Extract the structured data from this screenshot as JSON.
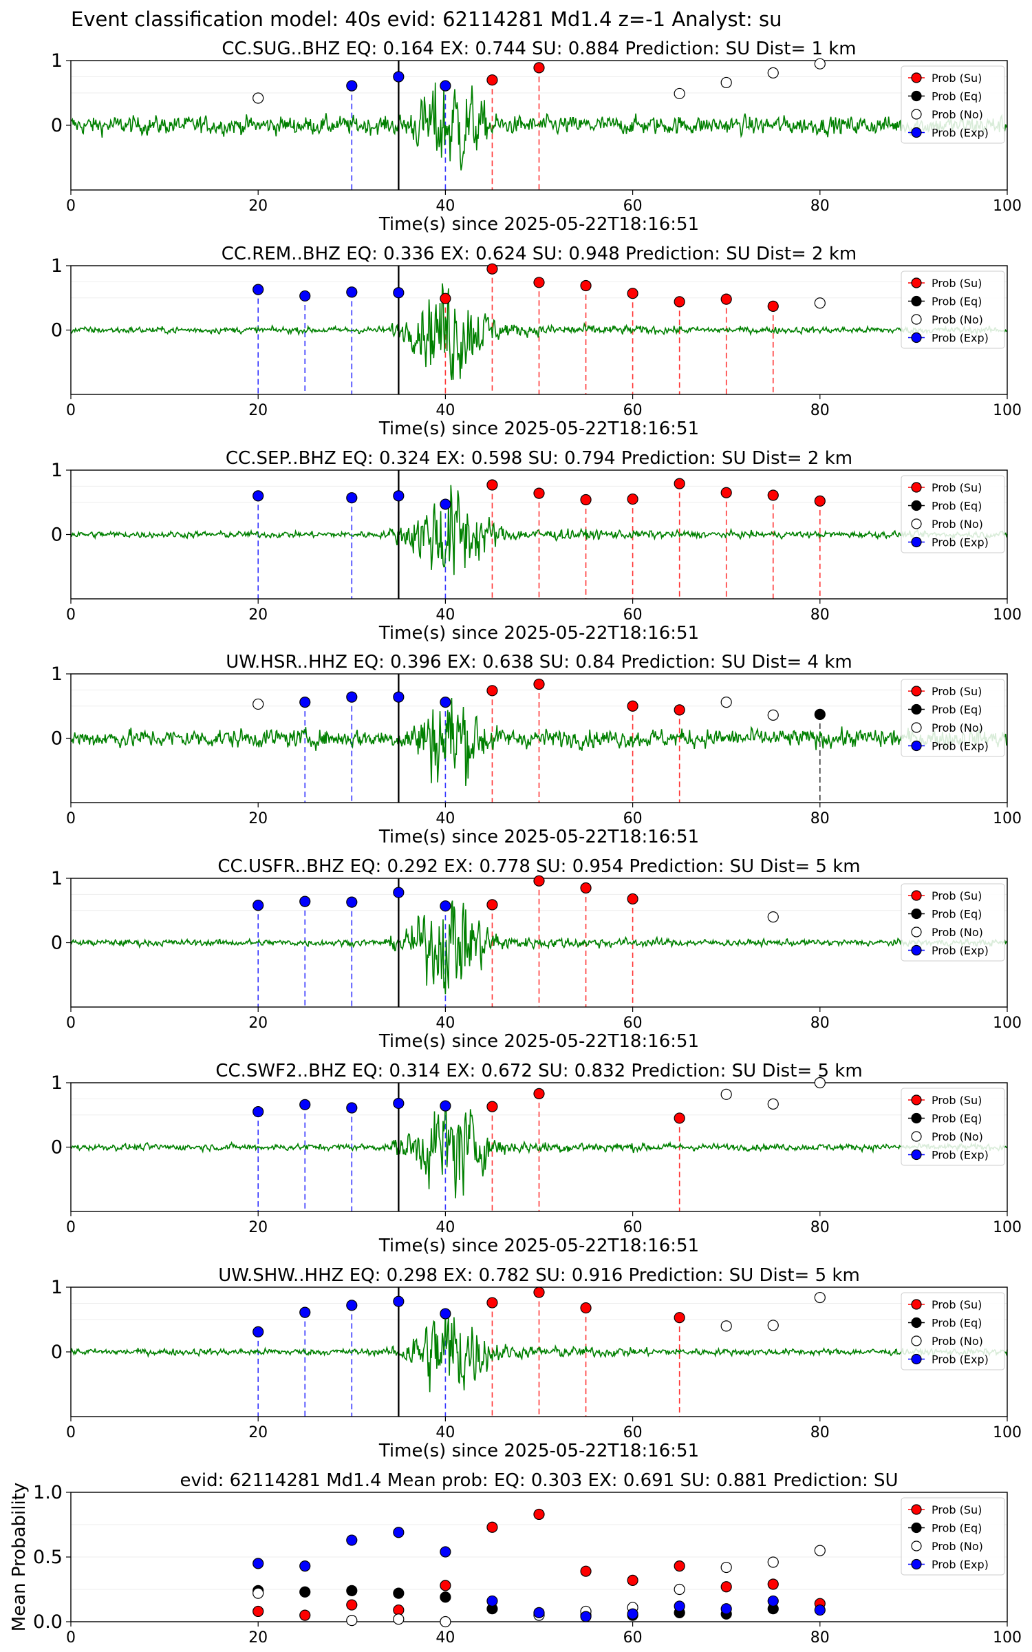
{
  "figure_title": "Event classification model: 40s evid: 62114281 Md1.4 z=-1 Analyst: su",
  "legend_labels": [
    "Prob (Su)",
    "Prob (Eq)",
    "Prob (No)",
    "Prob (Exp)"
  ],
  "colors": {
    "su": "#ff0000",
    "eq": "#000000",
    "no": "#ffffff",
    "exp": "#0000ff",
    "waveform": "#008000",
    "p_line": "#000000"
  },
  "chart_data": [
    {
      "type": "scatter",
      "title": "CC.SUG..BHZ   EQ: 0.164  EX: 0.744  SU: 0.884   Prediction: SU    Dist= 1 km",
      "xlabel": "Time(s) since 2025-05-22T18:16:51",
      "xlim": [
        0,
        100
      ],
      "xticks": [
        0,
        20,
        40,
        60,
        80,
        100
      ],
      "ylim": [
        -1,
        1
      ],
      "yticks": [
        0,
        1
      ],
      "p_arrival": 35,
      "waveform_amplitude": "medium",
      "points": [
        {
          "x": 20,
          "y": 0.42,
          "cls": "no"
        },
        {
          "x": 30,
          "y": 0.61,
          "cls": "exp"
        },
        {
          "x": 35,
          "y": 0.75,
          "cls": "exp"
        },
        {
          "x": 40,
          "y": 0.61,
          "cls": "exp"
        },
        {
          "x": 45,
          "y": 0.7,
          "cls": "su"
        },
        {
          "x": 50,
          "y": 0.89,
          "cls": "su"
        },
        {
          "x": 65,
          "y": 0.49,
          "cls": "no"
        },
        {
          "x": 70,
          "y": 0.66,
          "cls": "no"
        },
        {
          "x": 75,
          "y": 0.81,
          "cls": "no"
        },
        {
          "x": 80,
          "y": 0.95,
          "cls": "no"
        }
      ]
    },
    {
      "type": "scatter",
      "title": "CC.REM..BHZ   EQ: 0.336  EX: 0.624  SU: 0.948   Prediction: SU    Dist= 2 km",
      "xlabel": "Time(s) since 2025-05-22T18:16:51",
      "xlim": [
        0,
        100
      ],
      "xticks": [
        0,
        20,
        40,
        60,
        80,
        100
      ],
      "ylim": [
        -1,
        1
      ],
      "yticks": [
        0,
        1
      ],
      "p_arrival": 35,
      "waveform_amplitude": "low",
      "points": [
        {
          "x": 20,
          "y": 0.63,
          "cls": "exp"
        },
        {
          "x": 25,
          "y": 0.53,
          "cls": "exp"
        },
        {
          "x": 30,
          "y": 0.59,
          "cls": "exp"
        },
        {
          "x": 35,
          "y": 0.58,
          "cls": "exp"
        },
        {
          "x": 40,
          "y": 0.49,
          "cls": "su"
        },
        {
          "x": 45,
          "y": 0.95,
          "cls": "su"
        },
        {
          "x": 50,
          "y": 0.74,
          "cls": "su"
        },
        {
          "x": 55,
          "y": 0.69,
          "cls": "su"
        },
        {
          "x": 60,
          "y": 0.57,
          "cls": "su"
        },
        {
          "x": 65,
          "y": 0.44,
          "cls": "su"
        },
        {
          "x": 70,
          "y": 0.48,
          "cls": "su"
        },
        {
          "x": 75,
          "y": 0.37,
          "cls": "su"
        },
        {
          "x": 80,
          "y": 0.42,
          "cls": "no"
        }
      ]
    },
    {
      "type": "scatter",
      "title": "CC.SEP..BHZ   EQ: 0.324  EX: 0.598  SU: 0.794   Prediction: SU    Dist= 2 km",
      "xlabel": "Time(s) since 2025-05-22T18:16:51",
      "xlim": [
        0,
        100
      ],
      "xticks": [
        0,
        20,
        40,
        60,
        80,
        100
      ],
      "ylim": [
        -1,
        1
      ],
      "yticks": [
        0,
        1
      ],
      "p_arrival": 35,
      "waveform_amplitude": "low",
      "points": [
        {
          "x": 20,
          "y": 0.6,
          "cls": "exp"
        },
        {
          "x": 30,
          "y": 0.57,
          "cls": "exp"
        },
        {
          "x": 35,
          "y": 0.6,
          "cls": "exp"
        },
        {
          "x": 40,
          "y": 0.47,
          "cls": "exp"
        },
        {
          "x": 45,
          "y": 0.77,
          "cls": "su"
        },
        {
          "x": 50,
          "y": 0.64,
          "cls": "su"
        },
        {
          "x": 55,
          "y": 0.54,
          "cls": "su"
        },
        {
          "x": 60,
          "y": 0.55,
          "cls": "su"
        },
        {
          "x": 65,
          "y": 0.79,
          "cls": "su"
        },
        {
          "x": 70,
          "y": 0.65,
          "cls": "su"
        },
        {
          "x": 75,
          "y": 0.61,
          "cls": "su"
        },
        {
          "x": 80,
          "y": 0.52,
          "cls": "su"
        }
      ]
    },
    {
      "type": "scatter",
      "title": "UW.HSR..HHZ   EQ: 0.396  EX: 0.638  SU: 0.84   Prediction: SU    Dist= 4 km",
      "xlabel": "Time(s) since 2025-05-22T18:16:51",
      "xlim": [
        0,
        100
      ],
      "xticks": [
        0,
        20,
        40,
        60,
        80,
        100
      ],
      "ylim": [
        -1,
        1
      ],
      "yticks": [
        0,
        1
      ],
      "p_arrival": 35,
      "waveform_amplitude": "medium",
      "points": [
        {
          "x": 20,
          "y": 0.53,
          "cls": "no"
        },
        {
          "x": 25,
          "y": 0.56,
          "cls": "exp"
        },
        {
          "x": 30,
          "y": 0.64,
          "cls": "exp"
        },
        {
          "x": 35,
          "y": 0.64,
          "cls": "exp"
        },
        {
          "x": 40,
          "y": 0.56,
          "cls": "exp"
        },
        {
          "x": 45,
          "y": 0.74,
          "cls": "su"
        },
        {
          "x": 50,
          "y": 0.84,
          "cls": "su"
        },
        {
          "x": 60,
          "y": 0.5,
          "cls": "su"
        },
        {
          "x": 65,
          "y": 0.44,
          "cls": "su"
        },
        {
          "x": 70,
          "y": 0.56,
          "cls": "no"
        },
        {
          "x": 75,
          "y": 0.36,
          "cls": "no"
        },
        {
          "x": 80,
          "y": 0.37,
          "cls": "eq"
        }
      ]
    },
    {
      "type": "scatter",
      "title": "CC.USFR..BHZ   EQ: 0.292  EX: 0.778  SU: 0.954   Prediction: SU    Dist= 5 km",
      "xlabel": "Time(s) since 2025-05-22T18:16:51",
      "xlim": [
        0,
        100
      ],
      "xticks": [
        0,
        20,
        40,
        60,
        80,
        100
      ],
      "ylim": [
        -1,
        1
      ],
      "yticks": [
        0,
        1
      ],
      "p_arrival": 35,
      "waveform_amplitude": "low",
      "points": [
        {
          "x": 20,
          "y": 0.58,
          "cls": "exp"
        },
        {
          "x": 25,
          "y": 0.64,
          "cls": "exp"
        },
        {
          "x": 30,
          "y": 0.63,
          "cls": "exp"
        },
        {
          "x": 35,
          "y": 0.78,
          "cls": "exp"
        },
        {
          "x": 40,
          "y": 0.57,
          "cls": "exp"
        },
        {
          "x": 45,
          "y": 0.59,
          "cls": "su"
        },
        {
          "x": 50,
          "y": 0.96,
          "cls": "su"
        },
        {
          "x": 55,
          "y": 0.85,
          "cls": "su"
        },
        {
          "x": 60,
          "y": 0.68,
          "cls": "su"
        },
        {
          "x": 75,
          "y": 0.4,
          "cls": "no"
        }
      ]
    },
    {
      "type": "scatter",
      "title": "CC.SWF2..BHZ   EQ: 0.314  EX: 0.672  SU: 0.832   Prediction: SU    Dist= 5 km",
      "xlabel": "Time(s) since 2025-05-22T18:16:51",
      "xlim": [
        0,
        100
      ],
      "xticks": [
        0,
        20,
        40,
        60,
        80,
        100
      ],
      "ylim": [
        -1,
        1
      ],
      "yticks": [
        0,
        1
      ],
      "p_arrival": 35,
      "waveform_amplitude": "low",
      "points": [
        {
          "x": 20,
          "y": 0.55,
          "cls": "exp"
        },
        {
          "x": 25,
          "y": 0.66,
          "cls": "exp"
        },
        {
          "x": 30,
          "y": 0.61,
          "cls": "exp"
        },
        {
          "x": 35,
          "y": 0.68,
          "cls": "exp"
        },
        {
          "x": 40,
          "y": 0.64,
          "cls": "exp"
        },
        {
          "x": 45,
          "y": 0.63,
          "cls": "su"
        },
        {
          "x": 50,
          "y": 0.83,
          "cls": "su"
        },
        {
          "x": 65,
          "y": 0.45,
          "cls": "su"
        },
        {
          "x": 70,
          "y": 0.82,
          "cls": "no"
        },
        {
          "x": 75,
          "y": 0.67,
          "cls": "no"
        },
        {
          "x": 80,
          "y": 1.0,
          "cls": "no"
        }
      ]
    },
    {
      "type": "scatter",
      "title": "UW.SHW..HHZ   EQ: 0.298  EX: 0.782  SU: 0.916   Prediction: SU    Dist= 5 km",
      "xlabel": "Time(s) since 2025-05-22T18:16:51",
      "xlim": [
        0,
        100
      ],
      "xticks": [
        0,
        20,
        40,
        60,
        80,
        100
      ],
      "ylim": [
        -1,
        1
      ],
      "yticks": [
        0,
        1
      ],
      "p_arrival": 35,
      "waveform_amplitude": "low",
      "points": [
        {
          "x": 20,
          "y": 0.31,
          "cls": "exp"
        },
        {
          "x": 25,
          "y": 0.61,
          "cls": "exp"
        },
        {
          "x": 30,
          "y": 0.72,
          "cls": "exp"
        },
        {
          "x": 35,
          "y": 0.78,
          "cls": "exp"
        },
        {
          "x": 40,
          "y": 0.59,
          "cls": "exp"
        },
        {
          "x": 45,
          "y": 0.76,
          "cls": "su"
        },
        {
          "x": 50,
          "y": 0.92,
          "cls": "su"
        },
        {
          "x": 55,
          "y": 0.68,
          "cls": "su"
        },
        {
          "x": 65,
          "y": 0.53,
          "cls": "su"
        },
        {
          "x": 70,
          "y": 0.4,
          "cls": "no"
        },
        {
          "x": 75,
          "y": 0.41,
          "cls": "no"
        },
        {
          "x": 80,
          "y": 0.84,
          "cls": "no"
        }
      ]
    },
    {
      "type": "scatter",
      "title": "evid: 62114281  Md1.4   Mean prob:   EQ: 0.303  EX: 0.691  SU: 0.881   Prediction: SU",
      "ylabel": "Mean Probability",
      "xlim": [
        0,
        100
      ],
      "xticks": [
        0,
        20,
        40,
        60,
        80,
        100
      ],
      "ylim": [
        0,
        1.0
      ],
      "yticks": [
        "0.0",
        "0.5",
        "1.0"
      ],
      "points": [
        {
          "x": 20,
          "y": 0.08,
          "cls": "su"
        },
        {
          "x": 25,
          "y": 0.05,
          "cls": "su"
        },
        {
          "x": 30,
          "y": 0.13,
          "cls": "su"
        },
        {
          "x": 35,
          "y": 0.09,
          "cls": "su"
        },
        {
          "x": 40,
          "y": 0.28,
          "cls": "su"
        },
        {
          "x": 45,
          "y": 0.73,
          "cls": "su"
        },
        {
          "x": 50,
          "y": 0.83,
          "cls": "su"
        },
        {
          "x": 55,
          "y": 0.39,
          "cls": "su"
        },
        {
          "x": 60,
          "y": 0.32,
          "cls": "su"
        },
        {
          "x": 65,
          "y": 0.43,
          "cls": "su"
        },
        {
          "x": 70,
          "y": 0.27,
          "cls": "su"
        },
        {
          "x": 75,
          "y": 0.29,
          "cls": "su"
        },
        {
          "x": 80,
          "y": 0.14,
          "cls": "su"
        },
        {
          "x": 20,
          "y": 0.24,
          "cls": "eq"
        },
        {
          "x": 25,
          "y": 0.23,
          "cls": "eq"
        },
        {
          "x": 30,
          "y": 0.24,
          "cls": "eq"
        },
        {
          "x": 35,
          "y": 0.22,
          "cls": "eq"
        },
        {
          "x": 40,
          "y": 0.19,
          "cls": "eq"
        },
        {
          "x": 45,
          "y": 0.1,
          "cls": "eq"
        },
        {
          "x": 50,
          "y": 0.06,
          "cls": "eq"
        },
        {
          "x": 55,
          "y": 0.05,
          "cls": "eq"
        },
        {
          "x": 60,
          "y": 0.05,
          "cls": "eq"
        },
        {
          "x": 65,
          "y": 0.07,
          "cls": "eq"
        },
        {
          "x": 70,
          "y": 0.06,
          "cls": "eq"
        },
        {
          "x": 75,
          "y": 0.1,
          "cls": "eq"
        },
        {
          "x": 20,
          "y": 0.22,
          "cls": "no"
        },
        {
          "x": 30,
          "y": 0.01,
          "cls": "no"
        },
        {
          "x": 35,
          "y": 0.02,
          "cls": "no"
        },
        {
          "x": 40,
          "y": 0.0,
          "cls": "no"
        },
        {
          "x": 50,
          "y": 0.05,
          "cls": "no"
        },
        {
          "x": 55,
          "y": 0.08,
          "cls": "no"
        },
        {
          "x": 60,
          "y": 0.11,
          "cls": "no"
        },
        {
          "x": 65,
          "y": 0.25,
          "cls": "no"
        },
        {
          "x": 70,
          "y": 0.42,
          "cls": "no"
        },
        {
          "x": 75,
          "y": 0.46,
          "cls": "no"
        },
        {
          "x": 80,
          "y": 0.55,
          "cls": "no"
        },
        {
          "x": 20,
          "y": 0.45,
          "cls": "exp"
        },
        {
          "x": 25,
          "y": 0.43,
          "cls": "exp"
        },
        {
          "x": 30,
          "y": 0.63,
          "cls": "exp"
        },
        {
          "x": 35,
          "y": 0.69,
          "cls": "exp"
        },
        {
          "x": 40,
          "y": 0.54,
          "cls": "exp"
        },
        {
          "x": 45,
          "y": 0.16,
          "cls": "exp"
        },
        {
          "x": 50,
          "y": 0.07,
          "cls": "exp"
        },
        {
          "x": 55,
          "y": 0.04,
          "cls": "exp"
        },
        {
          "x": 60,
          "y": 0.06,
          "cls": "exp"
        },
        {
          "x": 65,
          "y": 0.12,
          "cls": "exp"
        },
        {
          "x": 70,
          "y": 0.1,
          "cls": "exp"
        },
        {
          "x": 75,
          "y": 0.16,
          "cls": "exp"
        },
        {
          "x": 80,
          "y": 0.09,
          "cls": "exp"
        }
      ]
    }
  ]
}
